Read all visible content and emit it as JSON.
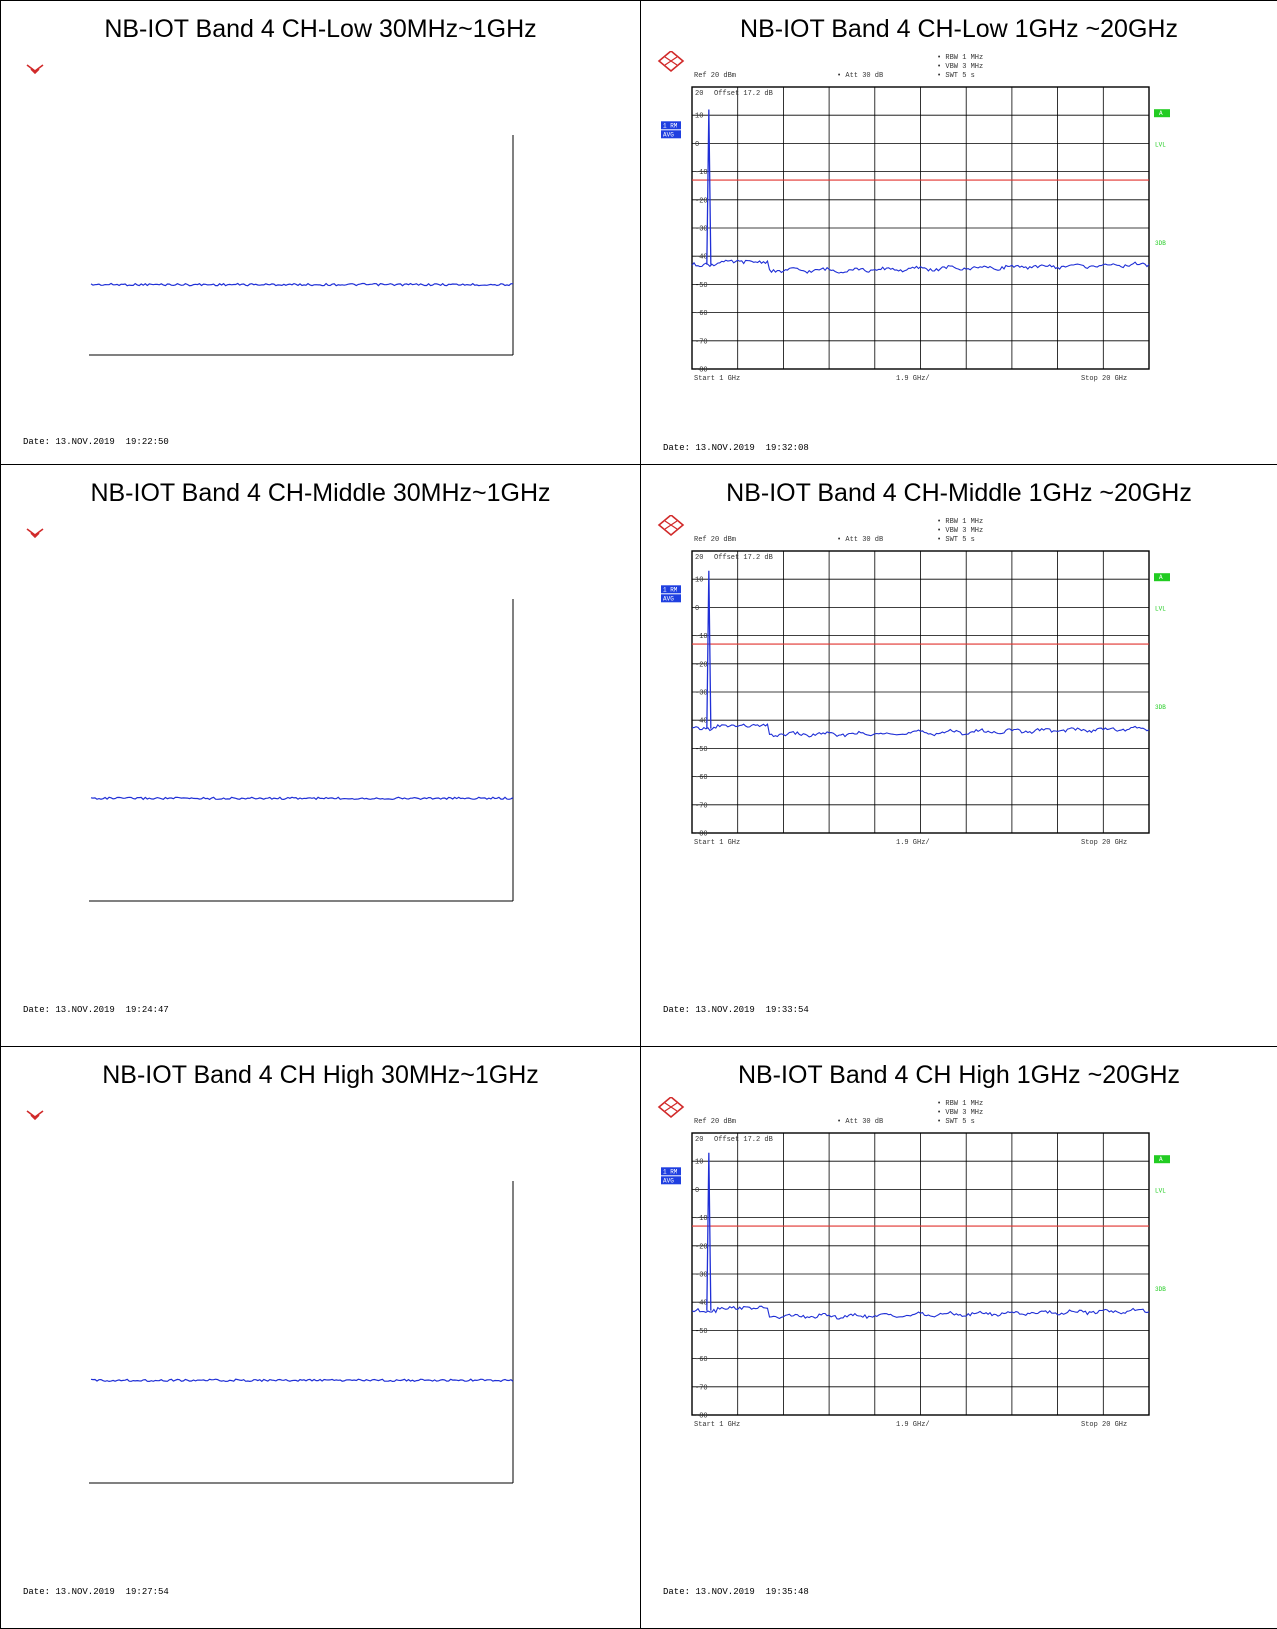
{
  "colors": {
    "trace": "#1f2fd6",
    "limit": "#e0332f",
    "green": "#22cc22",
    "badge": "#1f3fe0",
    "border": "#000000"
  },
  "cells": [
    {
      "title": "NB-IOT Band 4 CH-Low 30MHz~1GHz",
      "kind": "blank",
      "date": "Date: 13.NOV.2019  19:22:50",
      "chart_data": {
        "type": "line",
        "series": [
          {
            "values_level": 0.68
          }
        ]
      }
    },
    {
      "title": "NB-IOT Band 4 CH-Low 1GHz ~20GHz",
      "kind": "analyzer",
      "date": "Date: 13.NOV.2019  19:32:08",
      "header": {
        "rbw": "RBW 1 MHz",
        "vbw": "VBW 3 MHz",
        "swt": "SWT 5 s",
        "ref": "Ref  20 dBm",
        "att": "Att  30 dB",
        "offset": "Offset  17.2 dB"
      },
      "side": {
        "badge1": "1 RM",
        "badge2": "AVG",
        "a_tag": "A",
        "lvl": "LVL",
        "tdf": "3DB"
      },
      "footer": {
        "start": "Start  1 GHz",
        "span": "1.9 GHz/",
        "stop": "Stop  20 GHz"
      },
      "chart_data": {
        "type": "line",
        "x_range_ghz": [
          1,
          20
        ],
        "y_range_dbm": [
          -80,
          20
        ],
        "yticks": [
          "20",
          "10",
          "0",
          "-10",
          "-20",
          "-30",
          "-40",
          "-50",
          "-60",
          "-70",
          "-80"
        ],
        "limit_dbm": -13,
        "peak": {
          "x_ghz": 1.7,
          "y_dbm": 12
        },
        "noise_floor_dbm": [
          -42,
          -45,
          -45,
          -44.5,
          -44,
          -43.5,
          -43
        ]
      }
    },
    {
      "title": "NB-IOT Band 4 CH-Middle 30MHz~1GHz",
      "kind": "blank",
      "date": "Date: 13.NOV.2019  19:24:47",
      "chart_data": {
        "type": "line",
        "series": [
          {
            "values_level": 0.66
          }
        ]
      }
    },
    {
      "title": "NB-IOT Band 4 CH-Middle 1GHz ~20GHz",
      "kind": "analyzer",
      "date": "Date: 13.NOV.2019  19:33:54",
      "header": {
        "rbw": "RBW 1 MHz",
        "vbw": "VBW 3 MHz",
        "swt": "SWT 5 s",
        "ref": "Ref  20 dBm",
        "att": "Att  30 dB",
        "offset": "Offset  17.2 dB"
      },
      "side": {
        "badge1": "1 RM",
        "badge2": "AVG",
        "a_tag": "A",
        "lvl": "LVL",
        "tdf": "3DB"
      },
      "footer": {
        "start": "Start  1 GHz",
        "span": "1.9 GHz/",
        "stop": "Stop  20 GHz"
      },
      "chart_data": {
        "type": "line",
        "x_range_ghz": [
          1,
          20
        ],
        "y_range_dbm": [
          -80,
          20
        ],
        "yticks": [
          "20",
          "10",
          "0",
          "-10",
          "-20",
          "-30",
          "-40",
          "-50",
          "-60",
          "-70",
          "-80"
        ],
        "limit_dbm": -13,
        "peak": {
          "x_ghz": 1.7,
          "y_dbm": 13
        },
        "noise_floor_dbm": [
          -42,
          -45,
          -45,
          -44.5,
          -44,
          -43.5,
          -43
        ]
      }
    },
    {
      "title": "NB-IOT Band 4 CH High 30MHz~1GHz",
      "kind": "blank",
      "date": "Date: 13.NOV.2019  19:27:54",
      "chart_data": {
        "type": "line",
        "series": [
          {
            "values_level": 0.66
          }
        ]
      }
    },
    {
      "title": "NB-IOT Band 4 CH High 1GHz ~20GHz",
      "kind": "analyzer",
      "date": "Date: 13.NOV.2019  19:35:48",
      "header": {
        "rbw": "RBW 1 MHz",
        "vbw": "VBW 3 MHz",
        "swt": "SWT 5 s",
        "ref": "Ref  20 dBm",
        "att": "Att  30 dB",
        "offset": "Offset  17.2 dB"
      },
      "side": {
        "badge1": "1 RM",
        "badge2": "AVG",
        "a_tag": "A",
        "lvl": "LVL",
        "tdf": "3DB"
      },
      "footer": {
        "start": "Start  1 GHz",
        "span": "1.9 GHz/",
        "stop": "Stop  20 GHz"
      },
      "chart_data": {
        "type": "line",
        "x_range_ghz": [
          1,
          20
        ],
        "y_range_dbm": [
          -80,
          20
        ],
        "yticks": [
          "20",
          "10",
          "0",
          "-10",
          "-20",
          "-30",
          "-40",
          "-50",
          "-60",
          "-70",
          "-80"
        ],
        "limit_dbm": -13,
        "peak": {
          "x_ghz": 1.7,
          "y_dbm": 13
        },
        "noise_floor_dbm": [
          -42,
          -45,
          -45,
          -44.5,
          -44,
          -43.5,
          -43
        ]
      }
    }
  ]
}
